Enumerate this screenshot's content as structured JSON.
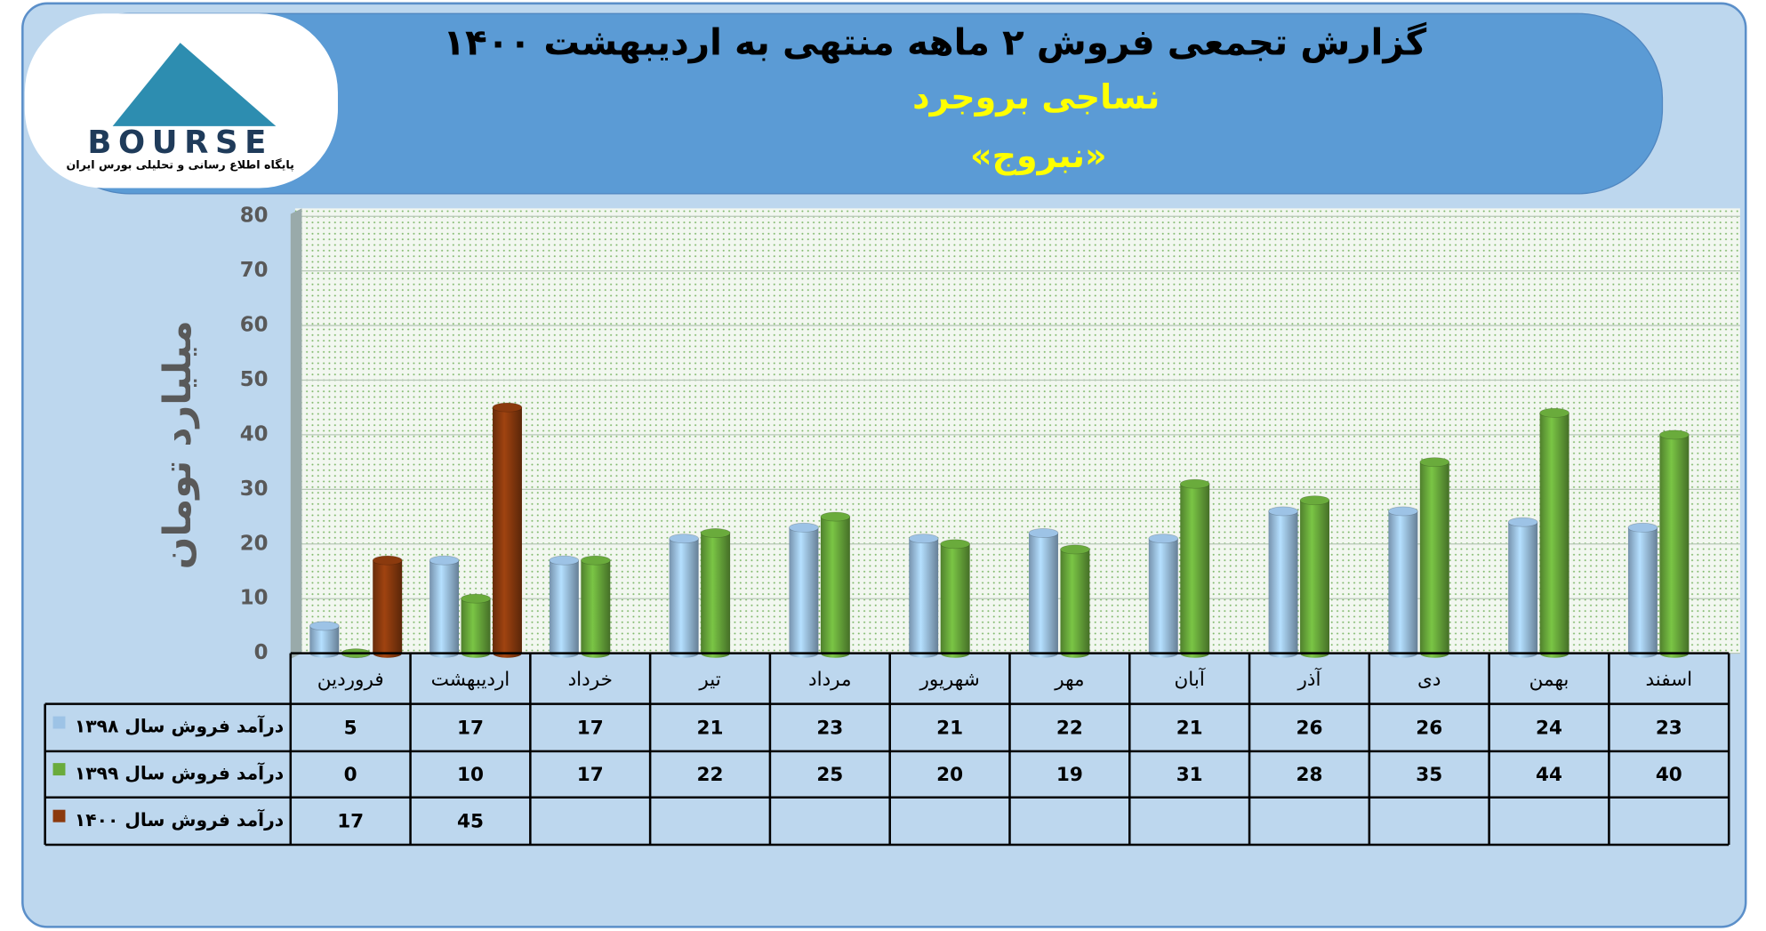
{
  "logo": {
    "text": "BOURSE",
    "caption": "پایگاه اطلاع رسانی و تحلیلی بورس ایران"
  },
  "chart_data": {
    "type": "bar",
    "title": "گزارش تجمعی فروش ۲ ماهه منتهی به اردیبهشت ۱۴۰۰",
    "subtitle": "نساجی بروجرد",
    "symbol": "«نبروج»",
    "y_label": "میلیارد تومان",
    "categories": [
      "فروردین",
      "اردیبهشت",
      "خرداد",
      "تیر",
      "مرداد",
      "شهریور",
      "مهر",
      "آبان",
      "آذر",
      "دی",
      "بهمن",
      "اسفند"
    ],
    "series": [
      {
        "name": "درآمد فروش سال ۱۳۹۸",
        "color": "#9dc3e6",
        "values": [
          5,
          17,
          17,
          21,
          23,
          21,
          22,
          21,
          26,
          26,
          24,
          23
        ]
      },
      {
        "name": "درآمد فروش سال ۱۳۹۹",
        "color": "#6aab3c",
        "values": [
          0,
          10,
          17,
          22,
          25,
          20,
          19,
          31,
          28,
          35,
          44,
          40
        ]
      },
      {
        "name": "درآمد فروش سال ۱۴۰۰",
        "color": "#8b3a0e",
        "values": [
          17,
          45,
          null,
          null,
          null,
          null,
          null,
          null,
          null,
          null,
          null,
          null
        ]
      }
    ],
    "ylim": [
      0,
      80
    ],
    "yticks": [
      0,
      10,
      20,
      30,
      40,
      50,
      60,
      70,
      80
    ],
    "grid": true
  }
}
